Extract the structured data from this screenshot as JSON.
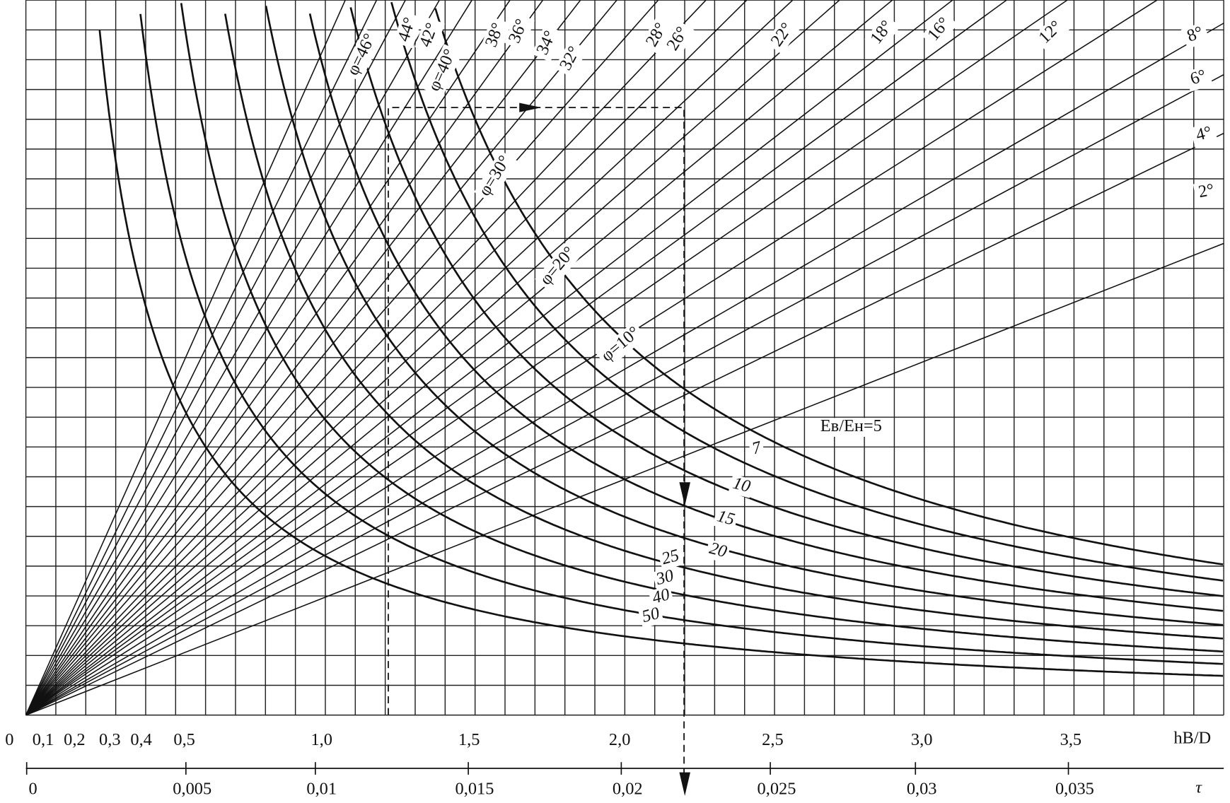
{
  "top_axis": {
    "labels": [
      "0",
      "0,1",
      "0,2",
      "0,3",
      "0,4",
      "0,5",
      "1,0",
      "1,5",
      "2,0",
      "2,5",
      "3,0",
      "3,5"
    ],
    "title": "hB/D"
  },
  "bottom_axis": {
    "labels": [
      "0",
      "0,005",
      "0,01",
      "0,015",
      "0,02",
      "0,025",
      "0,03",
      "0,035"
    ],
    "title": "τ"
  },
  "phi_labels": [
    "φ=46°",
    "44°",
    "42°",
    "φ=40°",
    "38°",
    "36°",
    "34°",
    "32°",
    "28°",
    "26°",
    "22°",
    "18°",
    "16°",
    "12°",
    "8°",
    "6°",
    "4°",
    "2°",
    "φ=30°",
    "φ=20°",
    "φ=10°"
  ],
  "ratio_labels": [
    "Eв/Eн=5",
    "7",
    "10",
    "15",
    "20",
    "25",
    "30",
    "40",
    "50"
  ]
}
